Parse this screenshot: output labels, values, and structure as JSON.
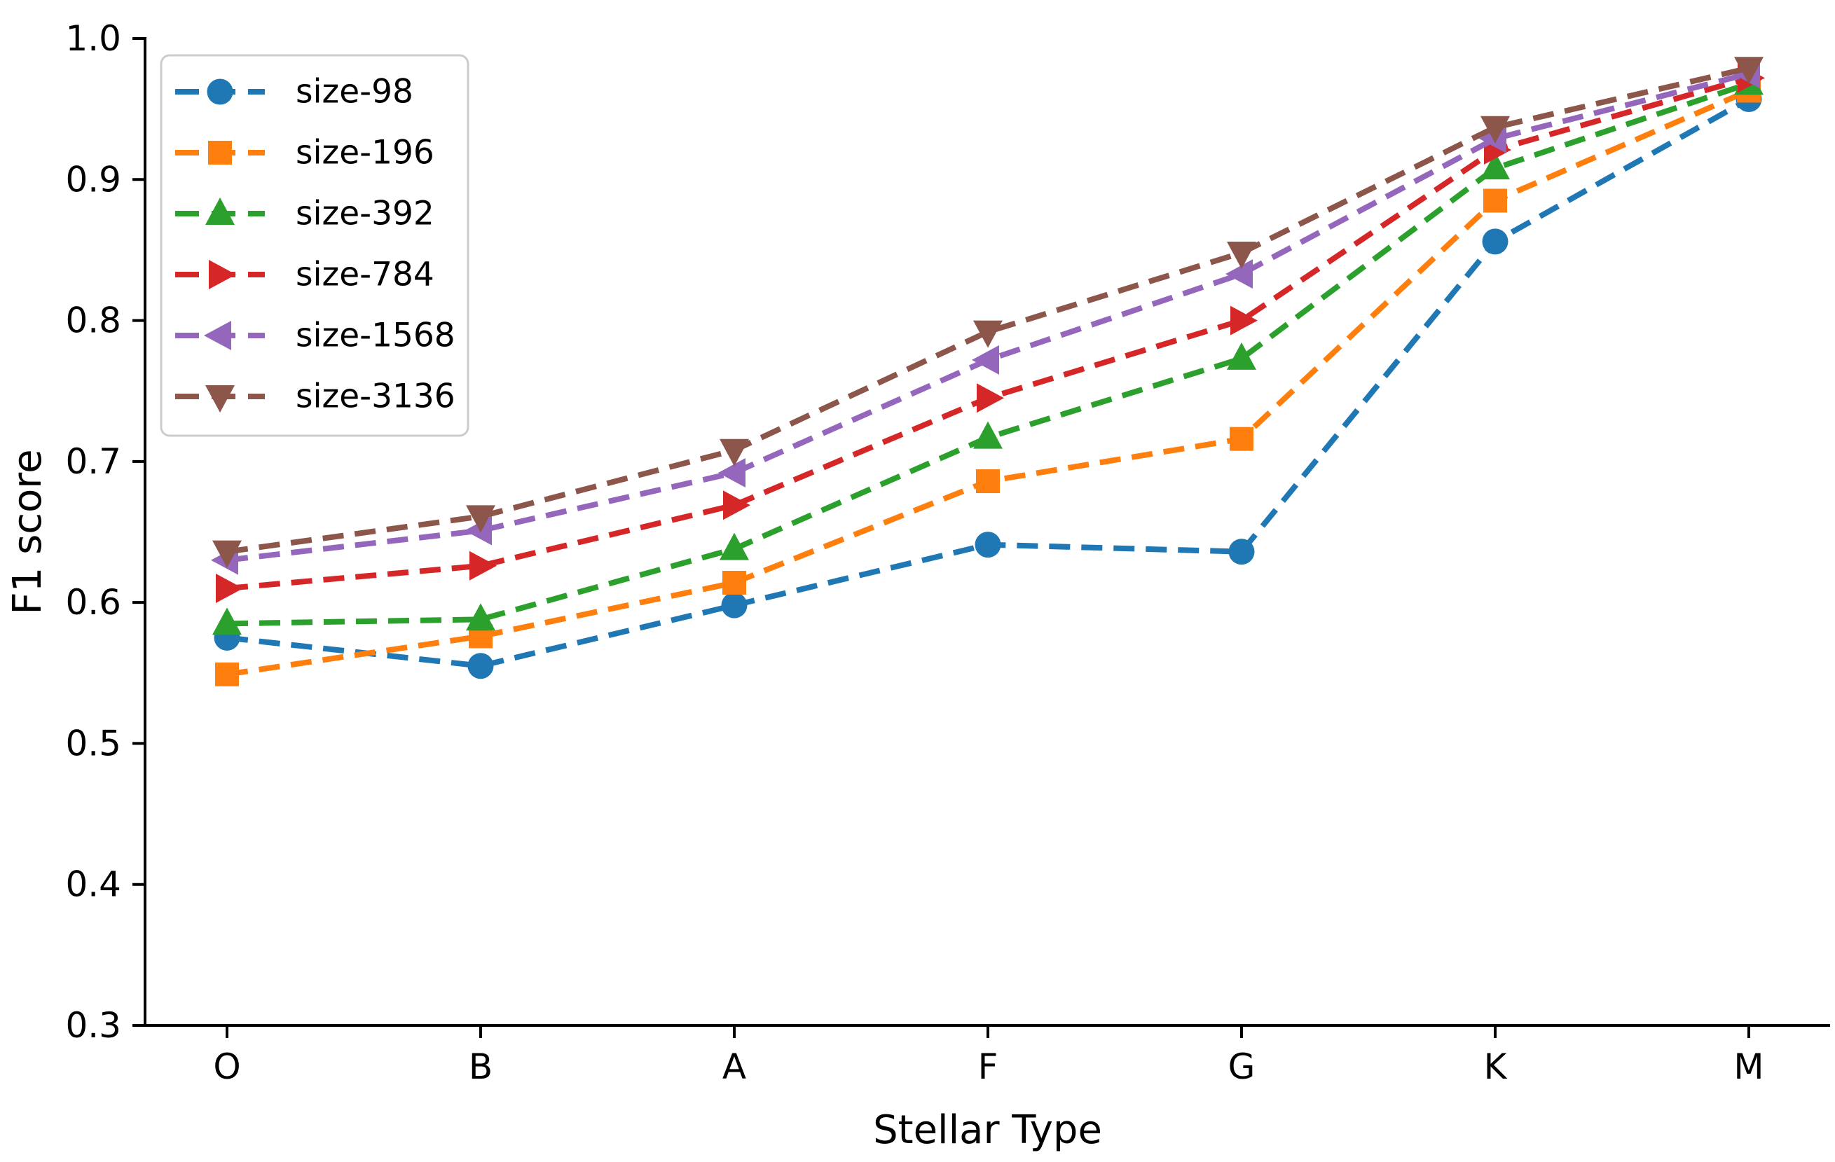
{
  "figure": {
    "background": "#ffffff"
  },
  "chart_data": {
    "type": "line",
    "title": "",
    "xlabel": "Stellar Type",
    "ylabel": "F1 score",
    "categories": [
      "O",
      "B",
      "A",
      "F",
      "G",
      "K",
      "M"
    ],
    "ylim": [
      0.3,
      1.0
    ],
    "yticks": [
      0.3,
      0.4,
      0.5,
      0.6,
      0.7,
      0.8,
      0.9,
      1.0
    ],
    "ytick_labels": [
      "0.3",
      "0.4",
      "0.5",
      "0.6",
      "0.7",
      "0.8",
      "0.9",
      "1.0"
    ],
    "grid": false,
    "line_style": "dashed",
    "legend_position": "upper-left",
    "axis_color": "#000000",
    "legend_border_color": "#cccccc",
    "series": [
      {
        "name": "size-98",
        "color": "#1f77b4",
        "marker": "circle",
        "values": [
          0.575,
          0.555,
          0.598,
          0.641,
          0.636,
          0.856,
          0.957
        ]
      },
      {
        "name": "size-196",
        "color": "#ff7f0e",
        "marker": "square",
        "values": [
          0.549,
          0.576,
          0.614,
          0.686,
          0.716,
          0.885,
          0.963
        ]
      },
      {
        "name": "size-392",
        "color": "#2ca02c",
        "marker": "triangle-up",
        "values": [
          0.585,
          0.588,
          0.638,
          0.717,
          0.773,
          0.908,
          0.968
        ]
      },
      {
        "name": "size-784",
        "color": "#d62728",
        "marker": "triangle-right",
        "values": [
          0.61,
          0.626,
          0.669,
          0.745,
          0.8,
          0.921,
          0.972
        ]
      },
      {
        "name": "size-1568",
        "color": "#9467bd",
        "marker": "triangle-left",
        "values": [
          0.63,
          0.651,
          0.692,
          0.772,
          0.833,
          0.929,
          0.975
        ]
      },
      {
        "name": "size-3136",
        "color": "#8c564b",
        "marker": "triangle-down",
        "values": [
          0.636,
          0.661,
          0.708,
          0.792,
          0.848,
          0.937,
          0.979
        ]
      }
    ]
  }
}
